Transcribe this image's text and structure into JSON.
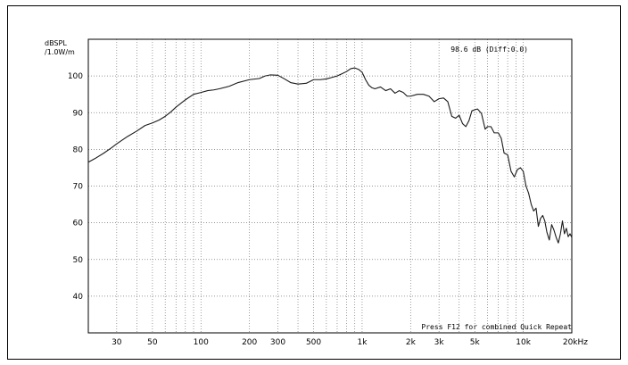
{
  "chart_data": {
    "type": "line",
    "title": "",
    "ylabel": "dBSPL",
    "ylabel_unit": "/1.0W/m",
    "xlabel": "",
    "x_scale": "log",
    "xlim": [
      20,
      20000
    ],
    "ylim": [
      30,
      110
    ],
    "grid": true,
    "y_ticks": [
      40,
      50,
      60,
      70,
      80,
      90,
      100
    ],
    "x_tick_labels": [
      {
        "value": 30,
        "label": "30"
      },
      {
        "value": 50,
        "label": "50"
      },
      {
        "value": 100,
        "label": "100"
      },
      {
        "value": 200,
        "label": "200"
      },
      {
        "value": 300,
        "label": "300"
      },
      {
        "value": 500,
        "label": "500"
      },
      {
        "value": 1000,
        "label": "1k"
      },
      {
        "value": 2000,
        "label": "2k"
      },
      {
        "value": 3000,
        "label": "3k"
      },
      {
        "value": 5000,
        "label": "5k"
      },
      {
        "value": 10000,
        "label": "10k"
      },
      {
        "value": 20000,
        "label": "20kHz"
      }
    ],
    "annotations": {
      "readout": "98.6 dB (Diff:0.0)",
      "footer": "Press F12 for combined Quick Repeat"
    },
    "series": [
      {
        "x": [
          20,
          22,
          25,
          28,
          30,
          35,
          40,
          45,
          50,
          55,
          60,
          65,
          70,
          80,
          90,
          100,
          110,
          120,
          130,
          150,
          170,
          200,
          230,
          250,
          270,
          300,
          330,
          360,
          400,
          450,
          500,
          550,
          600,
          650,
          700,
          750,
          800,
          850,
          900,
          950,
          1000,
          1050,
          1100,
          1150,
          1200,
          1300,
          1400,
          1500,
          1600,
          1700,
          1800,
          1900,
          2000,
          2200,
          2400,
          2600,
          2800,
          3000,
          3200,
          3400,
          3600,
          3800,
          4000,
          4200,
          4400,
          4600,
          4800,
          5000,
          5200,
          5500,
          5800,
          6000,
          6300,
          6600,
          7000,
          7300,
          7600,
          8000,
          8400,
          8800,
          9200,
          9600,
          10000,
          10400,
          10800,
          11200,
          11600,
          12000,
          12400,
          12800,
          13200,
          13600,
          14000,
          14500,
          15000,
          15500,
          16000,
          16500,
          17000,
          17500,
          18000,
          18500,
          19000,
          19500,
          20000
        ],
        "values": [
          76.5,
          77.5,
          79,
          80.5,
          81.5,
          83.5,
          85,
          86.5,
          87.2,
          88,
          89,
          90.2,
          91.5,
          93.5,
          95,
          95.5,
          96,
          96.2,
          96.5,
          97.2,
          98.2,
          99,
          99.3,
          100,
          100.3,
          100.2,
          99.2,
          98.2,
          97.8,
          98,
          99,
          99,
          99.2,
          99.6,
          100,
          100.6,
          101.2,
          102,
          102.2,
          101.8,
          101,
          99,
          97.5,
          96.8,
          96.5,
          97,
          96,
          96.5,
          95.3,
          96,
          95.5,
          94.5,
          94.5,
          95,
          95,
          94.5,
          93,
          93.8,
          94,
          93,
          89,
          88.5,
          89.3,
          87,
          86.2,
          87.8,
          90.5,
          90.8,
          91,
          89.8,
          85.5,
          86.2,
          86.2,
          84.5,
          84.5,
          83,
          79,
          78.5,
          74,
          72.5,
          74.5,
          75,
          74,
          70,
          68,
          65,
          63.2,
          64,
          59,
          61.2,
          62,
          60.5,
          57.5,
          55.3,
          59.5,
          58,
          56,
          54.5,
          57,
          60.5,
          57,
          58.5,
          56.2,
          57,
          56
        ]
      }
    ]
  }
}
